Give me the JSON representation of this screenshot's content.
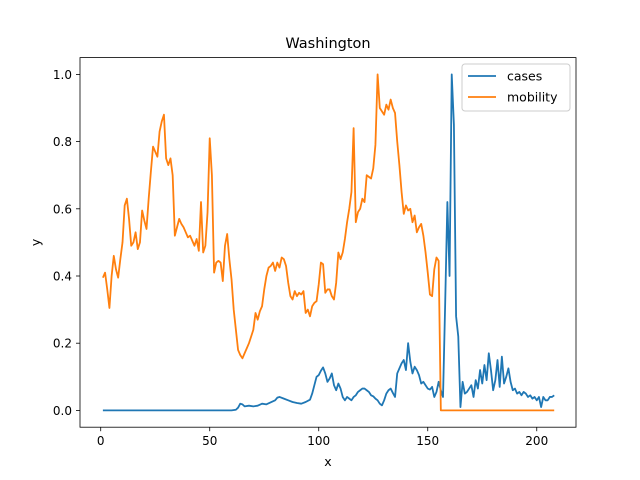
{
  "chart_data": {
    "type": "line",
    "title": "Washington",
    "xlabel": "x",
    "ylabel": "y",
    "xlim": [
      -9.5,
      218
    ],
    "ylim": [
      -0.05,
      1.05
    ],
    "xticks": [
      0,
      50,
      100,
      150,
      200
    ],
    "yticks": [
      0.0,
      0.2,
      0.4,
      0.6,
      0.8,
      1.0
    ],
    "legend": "top-right",
    "series": [
      {
        "name": "cases",
        "color": "#1f77b4",
        "points": [
          [
            1,
            0
          ],
          [
            10,
            0
          ],
          [
            20,
            0
          ],
          [
            30,
            0
          ],
          [
            40,
            0
          ],
          [
            50,
            0
          ],
          [
            60,
            0
          ],
          [
            62,
            0.002
          ],
          [
            63,
            0.008
          ],
          [
            64,
            0.02
          ],
          [
            65,
            0.018
          ],
          [
            66,
            0.012
          ],
          [
            68,
            0.014
          ],
          [
            70,
            0.012
          ],
          [
            72,
            0.014
          ],
          [
            74,
            0.02
          ],
          [
            76,
            0.018
          ],
          [
            78,
            0.024
          ],
          [
            80,
            0.03
          ],
          [
            81,
            0.038
          ],
          [
            82,
            0.04
          ],
          [
            84,
            0.035
          ],
          [
            86,
            0.03
          ],
          [
            88,
            0.025
          ],
          [
            90,
            0.022
          ],
          [
            92,
            0.02
          ],
          [
            94,
            0.025
          ],
          [
            96,
            0.032
          ],
          [
            97,
            0.05
          ],
          [
            98,
            0.075
          ],
          [
            99,
            0.1
          ],
          [
            100,
            0.105
          ],
          [
            101,
            0.118
          ],
          [
            102,
            0.128
          ],
          [
            103,
            0.11
          ],
          [
            104,
            0.085
          ],
          [
            105,
            0.095
          ],
          [
            106,
            0.11
          ],
          [
            107,
            0.075
          ],
          [
            108,
            0.06
          ],
          [
            109,
            0.08
          ],
          [
            110,
            0.065
          ],
          [
            111,
            0.04
          ],
          [
            112,
            0.03
          ],
          [
            113,
            0.04
          ],
          [
            114,
            0.035
          ],
          [
            115,
            0.03
          ],
          [
            116,
            0.04
          ],
          [
            117,
            0.045
          ],
          [
            118,
            0.055
          ],
          [
            119,
            0.06
          ],
          [
            120,
            0.065
          ],
          [
            121,
            0.065
          ],
          [
            122,
            0.06
          ],
          [
            123,
            0.055
          ],
          [
            124,
            0.045
          ],
          [
            125,
            0.042
          ],
          [
            126,
            0.035
          ],
          [
            127,
            0.03
          ],
          [
            128,
            0.02
          ],
          [
            129,
            0.015
          ],
          [
            130,
            0.03
          ],
          [
            131,
            0.05
          ],
          [
            132,
            0.06
          ],
          [
            133,
            0.065
          ],
          [
            134,
            0.052
          ],
          [
            135,
            0.04
          ],
          [
            136,
            0.11
          ],
          [
            137,
            0.125
          ],
          [
            138,
            0.14
          ],
          [
            139,
            0.15
          ],
          [
            140,
            0.12
          ],
          [
            141,
            0.2
          ],
          [
            142,
            0.145
          ],
          [
            143,
            0.11
          ],
          [
            144,
            0.13
          ],
          [
            145,
            0.12
          ],
          [
            146,
            0.105
          ],
          [
            147,
            0.08
          ],
          [
            148,
            0.085
          ],
          [
            149,
            0.075
          ],
          [
            150,
            0.065
          ],
          [
            151,
            0.062
          ],
          [
            152,
            0.07
          ],
          [
            153,
            0.04
          ],
          [
            154,
            0.055
          ],
          [
            155,
            0.085
          ],
          [
            156,
            0.06
          ],
          [
            157,
            0.04
          ],
          [
            158,
            0.32
          ],
          [
            159,
            0.62
          ],
          [
            160,
            0.4
          ],
          [
            161,
            1.0
          ],
          [
            162,
            0.85
          ],
          [
            163,
            0.28
          ],
          [
            164,
            0.22
          ],
          [
            165,
            0.01
          ],
          [
            166,
            0.085
          ],
          [
            167,
            0.05
          ],
          [
            168,
            0.055
          ],
          [
            169,
            0.065
          ],
          [
            170,
            0.075
          ],
          [
            171,
            0.04
          ],
          [
            172,
            0.09
          ],
          [
            173,
            0.065
          ],
          [
            174,
            0.12
          ],
          [
            175,
            0.08
          ],
          [
            176,
            0.135
          ],
          [
            177,
            0.09
          ],
          [
            178,
            0.17
          ],
          [
            179,
            0.12
          ],
          [
            180,
            0.06
          ],
          [
            181,
            0.09
          ],
          [
            182,
            0.15
          ],
          [
            183,
            0.07
          ],
          [
            184,
            0.16
          ],
          [
            185,
            0.08
          ],
          [
            186,
            0.1
          ],
          [
            187,
            0.125
          ],
          [
            188,
            0.085
          ],
          [
            189,
            0.06
          ],
          [
            190,
            0.065
          ],
          [
            191,
            0.05
          ],
          [
            192,
            0.055
          ],
          [
            193,
            0.045
          ],
          [
            194,
            0.055
          ],
          [
            195,
            0.05
          ],
          [
            196,
            0.04
          ],
          [
            197,
            0.045
          ],
          [
            198,
            0.035
          ],
          [
            199,
            0.04
          ],
          [
            200,
            0.03
          ],
          [
            201,
            0.04
          ],
          [
            202,
            0.01
          ],
          [
            203,
            0.04
          ],
          [
            204,
            0.03
          ],
          [
            205,
            0.03
          ],
          [
            206,
            0.04
          ],
          [
            207,
            0.04
          ],
          [
            208,
            0.045
          ]
        ]
      },
      {
        "name": "mobility",
        "color": "#ff7f0e",
        "points": [
          [
            1,
            0.395
          ],
          [
            2,
            0.41
          ],
          [
            3,
            0.36
          ],
          [
            4,
            0.305
          ],
          [
            5,
            0.4
          ],
          [
            6,
            0.46
          ],
          [
            7,
            0.42
          ],
          [
            8,
            0.395
          ],
          [
            9,
            0.45
          ],
          [
            10,
            0.5
          ],
          [
            11,
            0.61
          ],
          [
            12,
            0.63
          ],
          [
            13,
            0.57
          ],
          [
            14,
            0.49
          ],
          [
            15,
            0.5
          ],
          [
            16,
            0.53
          ],
          [
            17,
            0.48
          ],
          [
            18,
            0.5
          ],
          [
            19,
            0.595
          ],
          [
            20,
            0.565
          ],
          [
            21,
            0.54
          ],
          [
            22,
            0.63
          ],
          [
            23,
            0.71
          ],
          [
            24,
            0.785
          ],
          [
            25,
            0.77
          ],
          [
            26,
            0.755
          ],
          [
            27,
            0.83
          ],
          [
            28,
            0.86
          ],
          [
            29,
            0.88
          ],
          [
            30,
            0.75
          ],
          [
            31,
            0.73
          ],
          [
            32,
            0.75
          ],
          [
            33,
            0.7
          ],
          [
            34,
            0.52
          ],
          [
            35,
            0.545
          ],
          [
            36,
            0.57
          ],
          [
            37,
            0.555
          ],
          [
            38,
            0.545
          ],
          [
            39,
            0.53
          ],
          [
            40,
            0.515
          ],
          [
            41,
            0.52
          ],
          [
            42,
            0.505
          ],
          [
            43,
            0.49
          ],
          [
            44,
            0.51
          ],
          [
            45,
            0.475
          ],
          [
            46,
            0.62
          ],
          [
            47,
            0.47
          ],
          [
            48,
            0.49
          ],
          [
            49,
            0.59
          ],
          [
            50,
            0.81
          ],
          [
            51,
            0.7
          ],
          [
            52,
            0.41
          ],
          [
            53,
            0.44
          ],
          [
            54,
            0.445
          ],
          [
            55,
            0.44
          ],
          [
            56,
            0.385
          ],
          [
            57,
            0.49
          ],
          [
            58,
            0.525
          ],
          [
            59,
            0.45
          ],
          [
            60,
            0.39
          ],
          [
            61,
            0.3
          ],
          [
            62,
            0.24
          ],
          [
            63,
            0.18
          ],
          [
            64,
            0.165
          ],
          [
            65,
            0.155
          ],
          [
            66,
            0.17
          ],
          [
            67,
            0.185
          ],
          [
            68,
            0.2
          ],
          [
            69,
            0.22
          ],
          [
            70,
            0.24
          ],
          [
            71,
            0.29
          ],
          [
            72,
            0.27
          ],
          [
            73,
            0.295
          ],
          [
            74,
            0.31
          ],
          [
            75,
            0.36
          ],
          [
            76,
            0.4
          ],
          [
            77,
            0.425
          ],
          [
            78,
            0.43
          ],
          [
            79,
            0.44
          ],
          [
            80,
            0.415
          ],
          [
            81,
            0.44
          ],
          [
            82,
            0.425
          ],
          [
            83,
            0.455
          ],
          [
            84,
            0.45
          ],
          [
            85,
            0.43
          ],
          [
            86,
            0.38
          ],
          [
            87,
            0.34
          ],
          [
            88,
            0.33
          ],
          [
            89,
            0.355
          ],
          [
            90,
            0.34
          ],
          [
            91,
            0.35
          ],
          [
            92,
            0.345
          ],
          [
            93,
            0.355
          ],
          [
            94,
            0.29
          ],
          [
            95,
            0.3
          ],
          [
            96,
            0.28
          ],
          [
            97,
            0.31
          ],
          [
            98,
            0.32
          ],
          [
            99,
            0.325
          ],
          [
            100,
            0.375
          ],
          [
            101,
            0.44
          ],
          [
            102,
            0.435
          ],
          [
            103,
            0.35
          ],
          [
            104,
            0.36
          ],
          [
            105,
            0.36
          ],
          [
            106,
            0.34
          ],
          [
            107,
            0.33
          ],
          [
            108,
            0.38
          ],
          [
            109,
            0.47
          ],
          [
            110,
            0.45
          ],
          [
            111,
            0.47
          ],
          [
            112,
            0.51
          ],
          [
            113,
            0.56
          ],
          [
            114,
            0.6
          ],
          [
            115,
            0.65
          ],
          [
            116,
            0.84
          ],
          [
            117,
            0.56
          ],
          [
            118,
            0.59
          ],
          [
            119,
            0.6
          ],
          [
            120,
            0.63
          ],
          [
            121,
            0.62
          ],
          [
            122,
            0.7
          ],
          [
            123,
            0.695
          ],
          [
            124,
            0.69
          ],
          [
            125,
            0.72
          ],
          [
            126,
            0.79
          ],
          [
            127,
            1.0
          ],
          [
            128,
            0.9
          ],
          [
            129,
            0.89
          ],
          [
            130,
            0.88
          ],
          [
            131,
            0.91
          ],
          [
            132,
            0.895
          ],
          [
            133,
            0.925
          ],
          [
            134,
            0.9
          ],
          [
            135,
            0.885
          ],
          [
            136,
            0.8
          ],
          [
            137,
            0.73
          ],
          [
            138,
            0.65
          ],
          [
            139,
            0.585
          ],
          [
            140,
            0.61
          ],
          [
            141,
            0.595
          ],
          [
            142,
            0.6
          ],
          [
            143,
            0.56
          ],
          [
            144,
            0.58
          ],
          [
            145,
            0.53
          ],
          [
            146,
            0.545
          ],
          [
            147,
            0.555
          ],
          [
            148,
            0.52
          ],
          [
            149,
            0.47
          ],
          [
            150,
            0.41
          ],
          [
            151,
            0.345
          ],
          [
            152,
            0.34
          ],
          [
            153,
            0.42
          ],
          [
            154,
            0.455
          ],
          [
            155,
            0.445
          ],
          [
            156,
            0
          ],
          [
            160,
            0
          ],
          [
            170,
            0
          ],
          [
            180,
            0
          ],
          [
            190,
            0
          ],
          [
            200,
            0
          ],
          [
            208,
            0
          ]
        ]
      }
    ]
  }
}
